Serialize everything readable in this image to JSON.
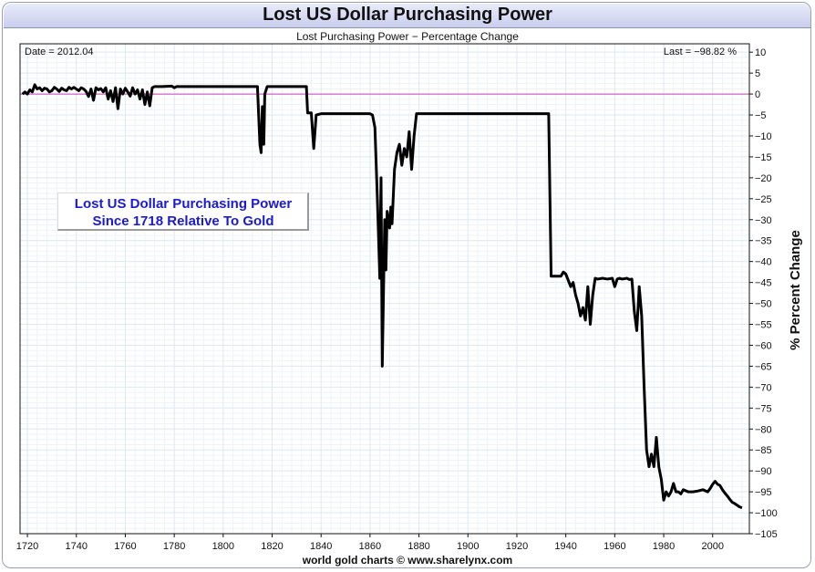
{
  "header": {
    "title": "Lost US Dollar Purchasing Power",
    "subtitle": "Lost Purchasing Power − Percentage Change"
  },
  "info": {
    "date_label": "Date = 2012.04",
    "last_label": "Last = −98.82 %"
  },
  "annotation": {
    "line1": "Lost US Dollar Purchasing Power",
    "line2": "Since 1718 Relative To Gold"
  },
  "footer": {
    "credit": "world gold charts © www.sharelynx.com"
  },
  "colors": {
    "line": "#000000",
    "zero_line": "#d23cb4",
    "grid": "#dbe8f3",
    "annotation_text": "#1a1ad6"
  },
  "chart_data": {
    "type": "line",
    "title": "Lost US Dollar Purchasing Power",
    "subtitle": "Lost Purchasing Power − Percentage Change",
    "xlabel": "",
    "ylabel": "% Percent Change",
    "xlim": [
      1717,
      2015
    ],
    "ylim": [
      -105,
      12
    ],
    "x_ticks": [
      1720,
      1740,
      1760,
      1780,
      1800,
      1820,
      1840,
      1860,
      1880,
      1900,
      1920,
      1940,
      1960,
      1980,
      2000
    ],
    "y_ticks": [
      10,
      5,
      0,
      -5,
      -10,
      -15,
      -20,
      -25,
      -30,
      -35,
      -40,
      -45,
      -50,
      -55,
      -60,
      -65,
      -70,
      -75,
      -80,
      -85,
      -90,
      -95,
      -100,
      -105
    ],
    "grid": true,
    "reference_line": 0,
    "series": [
      {
        "values": [
          [
            1718,
            0
          ],
          [
            1719,
            0.5
          ],
          [
            1720,
            0
          ],
          [
            1721,
            1
          ],
          [
            1722,
            0.5
          ],
          [
            1723,
            2.2
          ],
          [
            1724,
            1.2
          ],
          [
            1725,
            1.5
          ],
          [
            1726,
            0.8
          ],
          [
            1727,
            1.4
          ],
          [
            1728,
            1.2
          ],
          [
            1729,
            0.5
          ],
          [
            1730,
            0.8
          ],
          [
            1731,
            1.6
          ],
          [
            1732,
            1.2
          ],
          [
            1733,
            0.6
          ],
          [
            1734,
            1.4
          ],
          [
            1735,
            1
          ],
          [
            1736,
            0.8
          ],
          [
            1737,
            1.6
          ],
          [
            1738,
            1.2
          ],
          [
            1739,
            1.6
          ],
          [
            1740,
            1.2
          ],
          [
            1741,
            0.8
          ],
          [
            1742,
            1.5
          ],
          [
            1743,
            1.2
          ],
          [
            1744,
            0.6
          ],
          [
            1745,
            -0.6
          ],
          [
            1746,
            1.2
          ],
          [
            1747,
            -1.5
          ],
          [
            1748,
            1.5
          ],
          [
            1749,
            1
          ],
          [
            1750,
            1.3
          ],
          [
            1751,
            0.5
          ],
          [
            1752,
            1.5
          ],
          [
            1753,
            -1.2
          ],
          [
            1754,
            0.8
          ],
          [
            1755,
            -1.8
          ],
          [
            1756,
            1.5
          ],
          [
            1757,
            -3.5
          ],
          [
            1758,
            1.2
          ],
          [
            1759,
            0
          ],
          [
            1760,
            1.4
          ],
          [
            1761,
            0.5
          ],
          [
            1762,
            -0.5
          ],
          [
            1763,
            1.5
          ],
          [
            1764,
            0
          ],
          [
            1765,
            1
          ],
          [
            1766,
            -1.2
          ],
          [
            1767,
            1
          ],
          [
            1768,
            -2.5
          ],
          [
            1769,
            0.5
          ],
          [
            1770,
            -2.8
          ],
          [
            1771,
            1.5
          ],
          [
            1772,
            1.8
          ],
          [
            1775,
            1.8
          ],
          [
            1779,
            1.9
          ],
          [
            1780,
            1.5
          ],
          [
            1781,
            1.8
          ],
          [
            1790,
            1.8
          ],
          [
            1800,
            1.8
          ],
          [
            1814,
            1.8
          ],
          [
            1815,
            -12
          ],
          [
            1815.5,
            -14
          ],
          [
            1816,
            -3
          ],
          [
            1816.6,
            -12
          ],
          [
            1817,
            0
          ],
          [
            1818,
            1.8
          ],
          [
            1825,
            1.8
          ],
          [
            1834,
            1.8
          ],
          [
            1834.5,
            -4.5
          ],
          [
            1836,
            -4.5
          ],
          [
            1837,
            -13
          ],
          [
            1838,
            -5
          ],
          [
            1840,
            -4.7
          ],
          [
            1850,
            -4.7
          ],
          [
            1860,
            -4.7
          ],
          [
            1861,
            -5
          ],
          [
            1862,
            -8
          ],
          [
            1863,
            -25
          ],
          [
            1864,
            -44
          ],
          [
            1864.5,
            -20
          ],
          [
            1865,
            -65
          ],
          [
            1866,
            -30
          ],
          [
            1866.5,
            -42
          ],
          [
            1867,
            -28
          ],
          [
            1868,
            -32
          ],
          [
            1868.5,
            -27
          ],
          [
            1869,
            -31
          ],
          [
            1870,
            -18
          ],
          [
            1871,
            -14
          ],
          [
            1872,
            -12
          ],
          [
            1873,
            -17
          ],
          [
            1874,
            -13
          ],
          [
            1875,
            -15
          ],
          [
            1876,
            -9
          ],
          [
            1877,
            -18
          ],
          [
            1878,
            -10
          ],
          [
            1879,
            -4.7
          ],
          [
            1880,
            -4.7
          ],
          [
            1890,
            -4.7
          ],
          [
            1900,
            -4.7
          ],
          [
            1920,
            -4.7
          ],
          [
            1933,
            -4.7
          ],
          [
            1934,
            -43.5
          ],
          [
            1936,
            -43.5
          ],
          [
            1938,
            -43.5
          ],
          [
            1939,
            -42.5
          ],
          [
            1940,
            -43
          ],
          [
            1941,
            -44.5
          ],
          [
            1942,
            -46
          ],
          [
            1943,
            -45
          ],
          [
            1944,
            -48
          ],
          [
            1945,
            -50
          ],
          [
            1946,
            -53
          ],
          [
            1947,
            -51
          ],
          [
            1948,
            -54
          ],
          [
            1949,
            -46
          ],
          [
            1950,
            -55
          ],
          [
            1951,
            -48
          ],
          [
            1952,
            -44
          ],
          [
            1953,
            -44.2
          ],
          [
            1955,
            -44
          ],
          [
            1957,
            -44.2
          ],
          [
            1959,
            -44
          ],
          [
            1960,
            -46
          ],
          [
            1961,
            -44.2
          ],
          [
            1962,
            -44
          ],
          [
            1963,
            -44.2
          ],
          [
            1965,
            -44
          ],
          [
            1966,
            -44.3
          ],
          [
            1967,
            -44.2
          ],
          [
            1968,
            -52
          ],
          [
            1969,
            -56.5
          ],
          [
            1970,
            -46
          ],
          [
            1971,
            -53
          ],
          [
            1972,
            -70
          ],
          [
            1973,
            -85
          ],
          [
            1974,
            -89
          ],
          [
            1975,
            -86
          ],
          [
            1976,
            -89
          ],
          [
            1977,
            -82
          ],
          [
            1978,
            -89
          ],
          [
            1979,
            -92
          ],
          [
            1980,
            -97
          ],
          [
            1981,
            -95
          ],
          [
            1982,
            -96
          ],
          [
            1983,
            -95
          ],
          [
            1984,
            -93
          ],
          [
            1985,
            -95
          ],
          [
            1986,
            -95
          ],
          [
            1987,
            -95.5
          ],
          [
            1988,
            -94.5
          ],
          [
            1990,
            -95
          ],
          [
            1992,
            -95
          ],
          [
            1994,
            -94.8
          ],
          [
            1996,
            -94.5
          ],
          [
            1998,
            -95
          ],
          [
            1999,
            -94.2
          ],
          [
            2000,
            -93.2
          ],
          [
            2001,
            -92.5
          ],
          [
            2002,
            -93.2
          ],
          [
            2003,
            -93.5
          ],
          [
            2004,
            -94.5
          ],
          [
            2005,
            -95.3
          ],
          [
            2006,
            -96
          ],
          [
            2007,
            -96.8
          ],
          [
            2008,
            -97.5
          ],
          [
            2009,
            -97.8
          ],
          [
            2010,
            -98.2
          ],
          [
            2011,
            -98.6
          ],
          [
            2012,
            -98.82
          ]
        ]
      }
    ]
  }
}
